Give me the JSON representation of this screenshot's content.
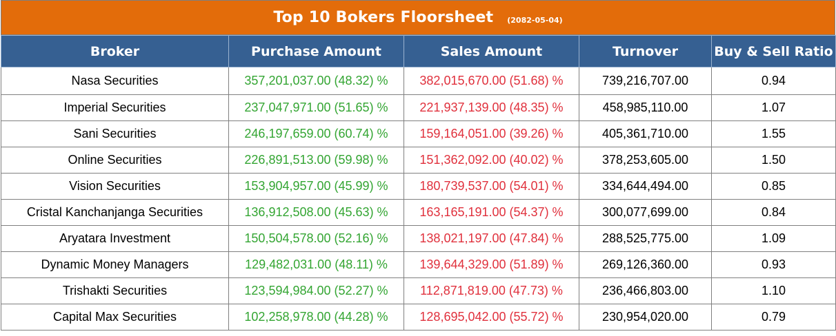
{
  "title": "Top 10 Bokers Floorsheet",
  "date": "(2082-05-04)",
  "colors": {
    "title_bg": "#e36c0a",
    "header_bg": "#366092",
    "purchase_text": "#33a532",
    "sales_text": "#e0303c"
  },
  "columns": [
    "Broker",
    "Purchase Amount",
    "Sales Amount",
    "Turnover",
    "Buy & Sell Ratio"
  ],
  "rows": [
    {
      "broker": "Nasa Securities",
      "purchase": "357,201,037.00 (48.32) %",
      "sales": "382,015,670.00 (51.68) %",
      "turnover": "739,216,707.00",
      "ratio": "0.94"
    },
    {
      "broker": "Imperial Securities",
      "purchase": "237,047,971.00 (51.65) %",
      "sales": "221,937,139.00 (48.35) %",
      "turnover": "458,985,110.00",
      "ratio": "1.07"
    },
    {
      "broker": "Sani Securities",
      "purchase": "246,197,659.00 (60.74) %",
      "sales": "159,164,051.00 (39.26) %",
      "turnover": "405,361,710.00",
      "ratio": "1.55"
    },
    {
      "broker": "Online Securities",
      "purchase": "226,891,513.00 (59.98) %",
      "sales": "151,362,092.00 (40.02) %",
      "turnover": "378,253,605.00",
      "ratio": "1.50"
    },
    {
      "broker": "Vision Securities",
      "purchase": "153,904,957.00 (45.99) %",
      "sales": "180,739,537.00 (54.01) %",
      "turnover": "334,644,494.00",
      "ratio": "0.85"
    },
    {
      "broker": "Cristal Kanchanjanga Securities",
      "purchase": "136,912,508.00 (45.63) %",
      "sales": "163,165,191.00 (54.37) %",
      "turnover": "300,077,699.00",
      "ratio": "0.84"
    },
    {
      "broker": "Aryatara Investment",
      "purchase": "150,504,578.00 (52.16) %",
      "sales": "138,021,197.00 (47.84) %",
      "turnover": "288,525,775.00",
      "ratio": "1.09"
    },
    {
      "broker": "Dynamic Money Managers",
      "purchase": "129,482,031.00 (48.11) %",
      "sales": "139,644,329.00 (51.89) %",
      "turnover": "269,126,360.00",
      "ratio": "0.93"
    },
    {
      "broker": "Trishakti Securities",
      "purchase": "123,594,984.00 (52.27) %",
      "sales": "112,871,819.00 (47.73) %",
      "turnover": "236,466,803.00",
      "ratio": "1.10"
    },
    {
      "broker": "Capital Max Securities",
      "purchase": "102,258,978.00 (44.28) %",
      "sales": "128,695,042.00 (55.72) %",
      "turnover": "230,954,020.00",
      "ratio": "0.79"
    }
  ]
}
